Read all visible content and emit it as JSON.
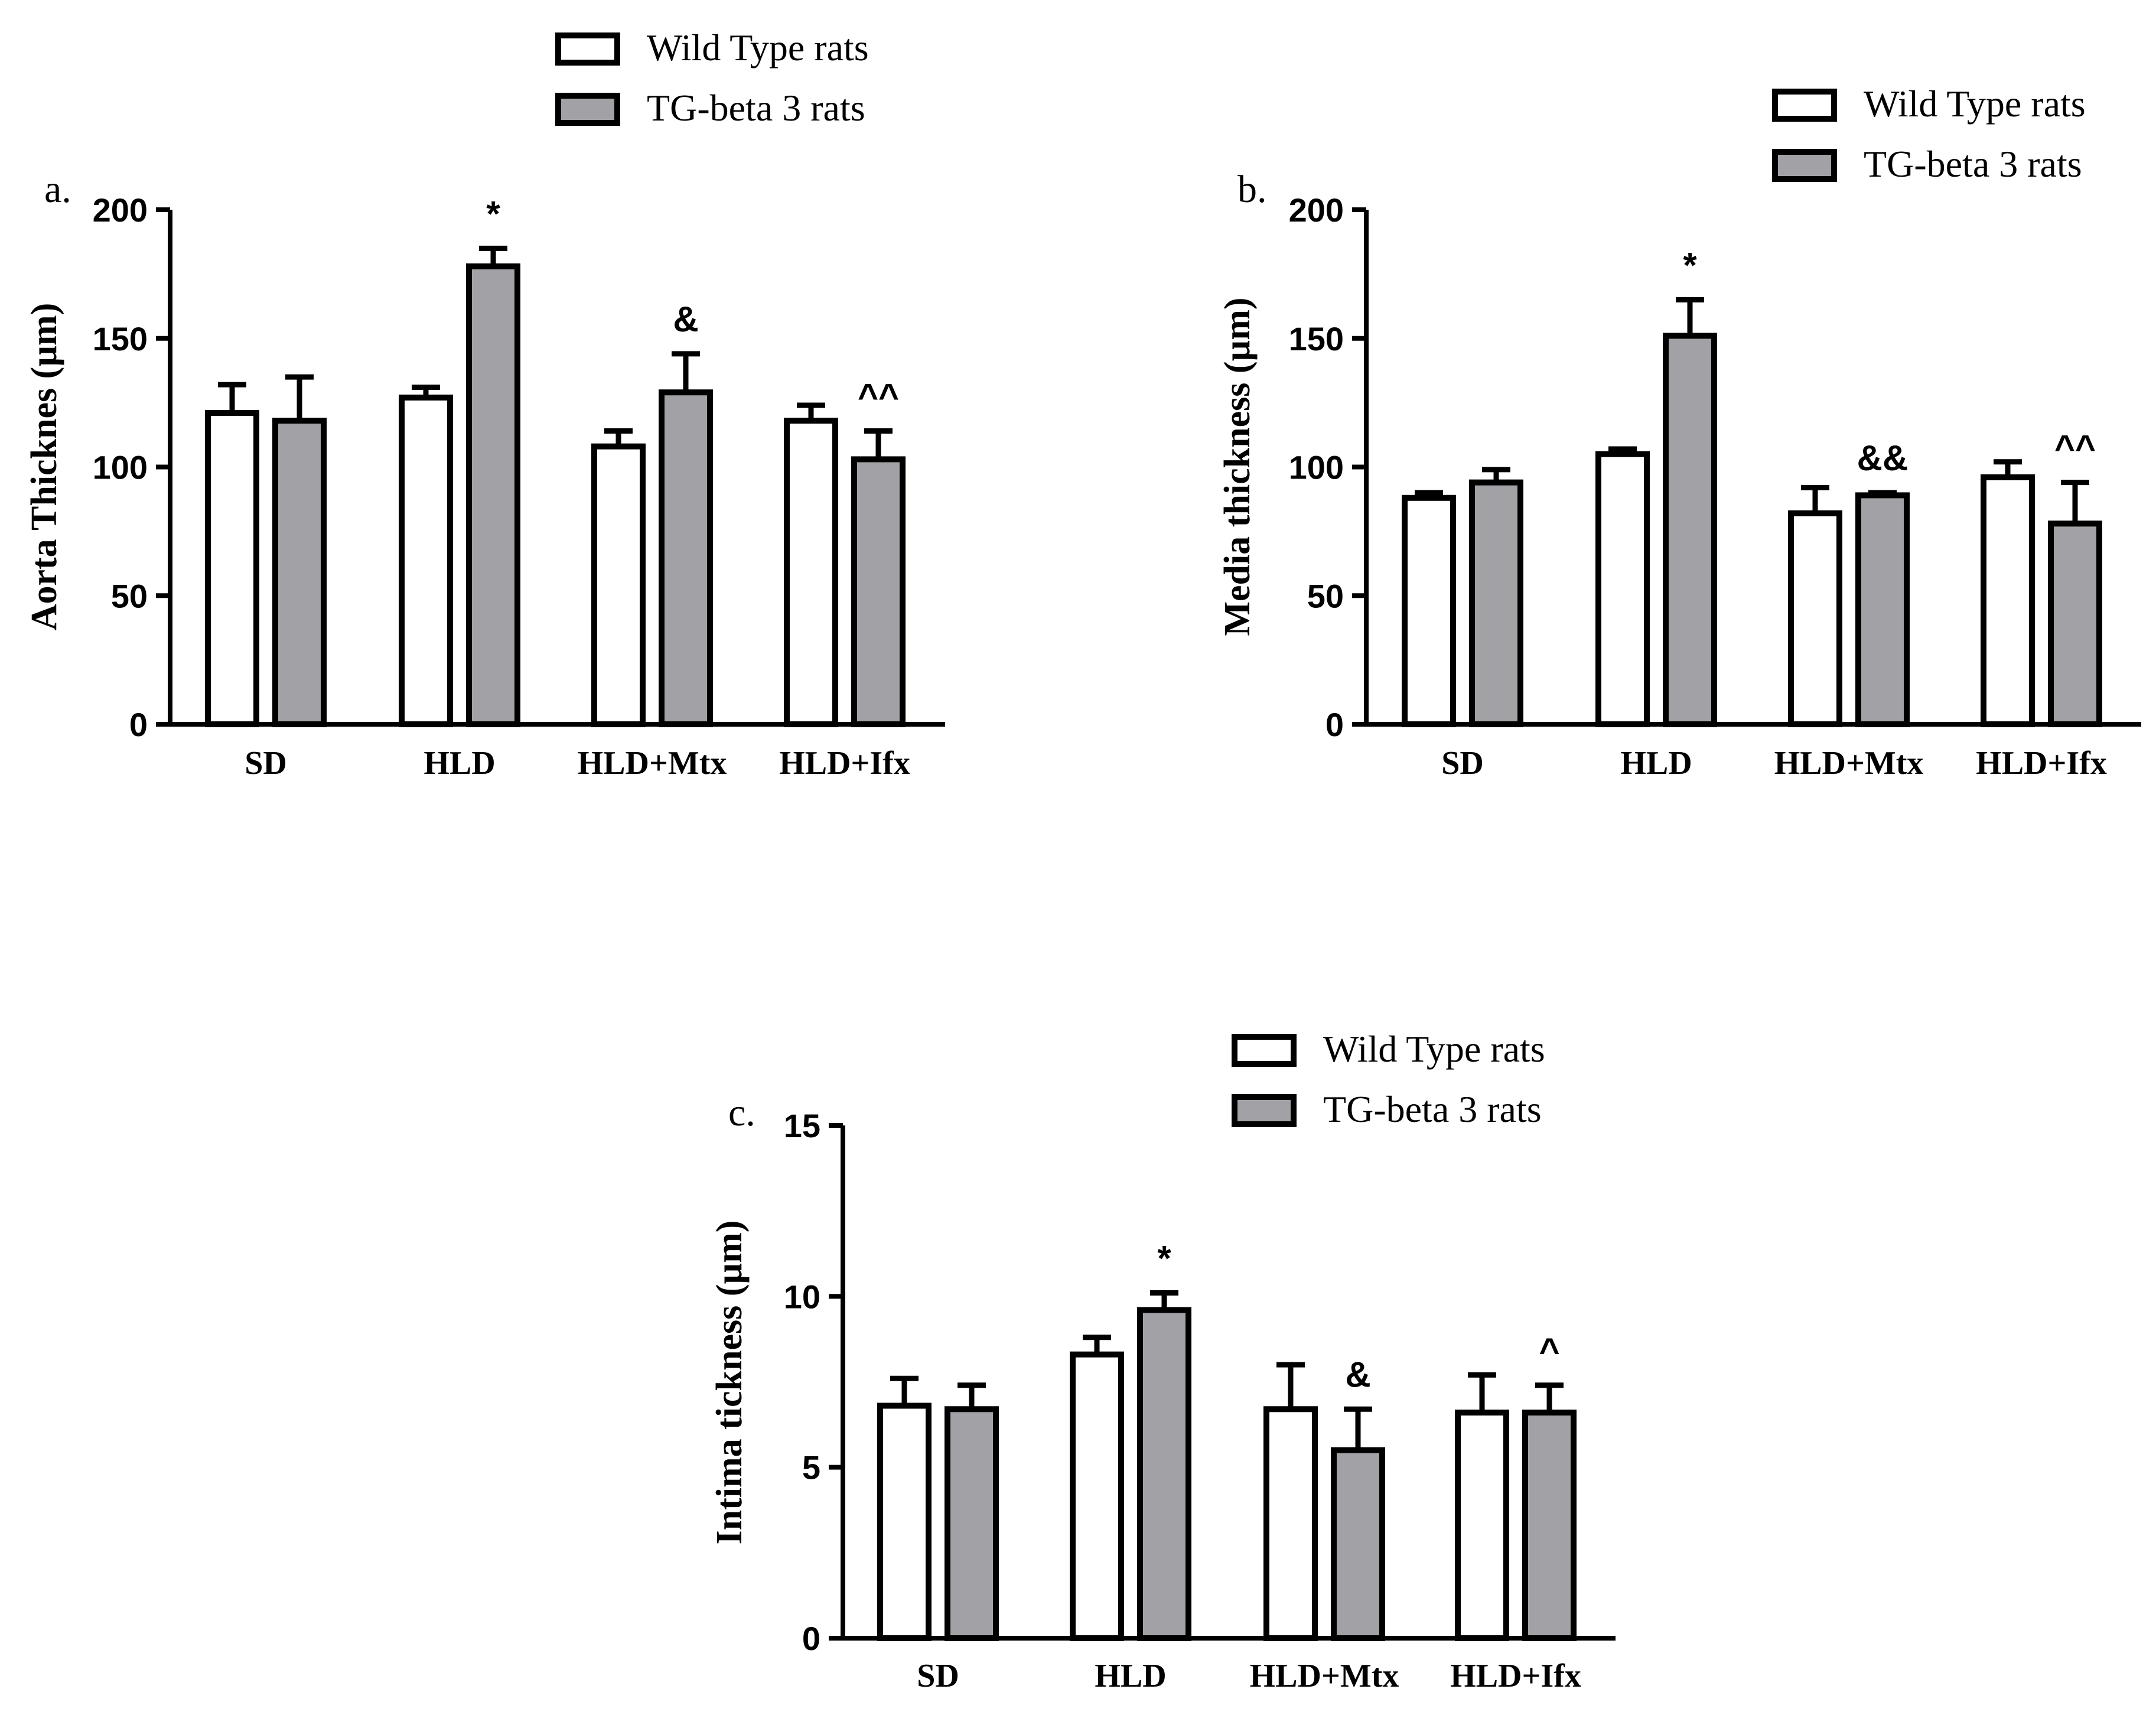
{
  "colors": {
    "wild_type": "#ffffff",
    "tg_beta3": "#a2a2a6",
    "stroke": "#000000"
  },
  "chart_data": [
    {
      "id": "a",
      "type": "bar",
      "panel_label": "a.",
      "ylabel": "Aorta Thicknes (µm)",
      "xlabel": "",
      "ylim": [
        0,
        200
      ],
      "yticks": [
        0,
        50,
        100,
        150,
        200
      ],
      "categories": [
        "SD",
        "HLD",
        "HLD+Mtx",
        "HLD+Ifx"
      ],
      "legend_position": "top-center",
      "series": [
        {
          "name": "Wild Type rats",
          "values": [
            121,
            127,
            108,
            118
          ],
          "errors": [
            11,
            4,
            6,
            6
          ]
        },
        {
          "name": "TG-beta 3 rats",
          "values": [
            118,
            178,
            129,
            103
          ],
          "errors": [
            17,
            7,
            15,
            11
          ]
        }
      ],
      "annotations": [
        {
          "category": "HLD",
          "series": 1,
          "text": "*"
        },
        {
          "category": "HLD+Mtx",
          "series": 1,
          "text": "&"
        },
        {
          "category": "HLD+Ifx",
          "series": 1,
          "text": "^^"
        }
      ]
    },
    {
      "id": "b",
      "type": "bar",
      "panel_label": "b.",
      "ylabel": "Media thickness (µm)",
      "xlabel": "",
      "ylim": [
        0,
        200
      ],
      "yticks": [
        0,
        50,
        100,
        150,
        200
      ],
      "categories": [
        "SD",
        "HLD",
        "HLD+Mtx",
        "HLD+Ifx"
      ],
      "legend_position": "top-right",
      "series": [
        {
          "name": "Wild Type rats",
          "values": [
            88,
            105,
            82,
            96
          ],
          "errors": [
            2,
            2,
            10,
            6
          ]
        },
        {
          "name": "TG-beta 3 rats",
          "values": [
            94,
            151,
            89,
            78
          ],
          "errors": [
            5,
            14,
            1,
            16
          ]
        }
      ],
      "annotations": [
        {
          "category": "HLD",
          "series": 1,
          "text": "*"
        },
        {
          "category": "HLD+Mtx",
          "series": 1,
          "text": "&&"
        },
        {
          "category": "HLD+Ifx",
          "series": 1,
          "text": "^^"
        }
      ]
    },
    {
      "id": "c",
      "type": "bar",
      "panel_label": "c.",
      "ylabel": "Intima tickness (µm)",
      "xlabel": "",
      "ylim": [
        0,
        15
      ],
      "yticks": [
        0,
        5,
        10,
        15
      ],
      "categories": [
        "SD",
        "HLD",
        "HLD+Mtx",
        "HLD+Ifx"
      ],
      "legend_position": "top-center",
      "series": [
        {
          "name": "Wild Type rats",
          "values": [
            6.8,
            8.3,
            6.7,
            6.6
          ],
          "errors": [
            0.8,
            0.5,
            1.3,
            1.1
          ]
        },
        {
          "name": "TG-beta 3 rats",
          "values": [
            6.7,
            9.6,
            5.5,
            6.6
          ],
          "errors": [
            0.7,
            0.5,
            1.2,
            0.8
          ]
        }
      ],
      "annotations": [
        {
          "category": "HLD",
          "series": 1,
          "text": "*"
        },
        {
          "category": "HLD+Mtx",
          "series": 1,
          "text": "&"
        },
        {
          "category": "HLD+Ifx",
          "series": 1,
          "text": "^"
        }
      ]
    }
  ]
}
